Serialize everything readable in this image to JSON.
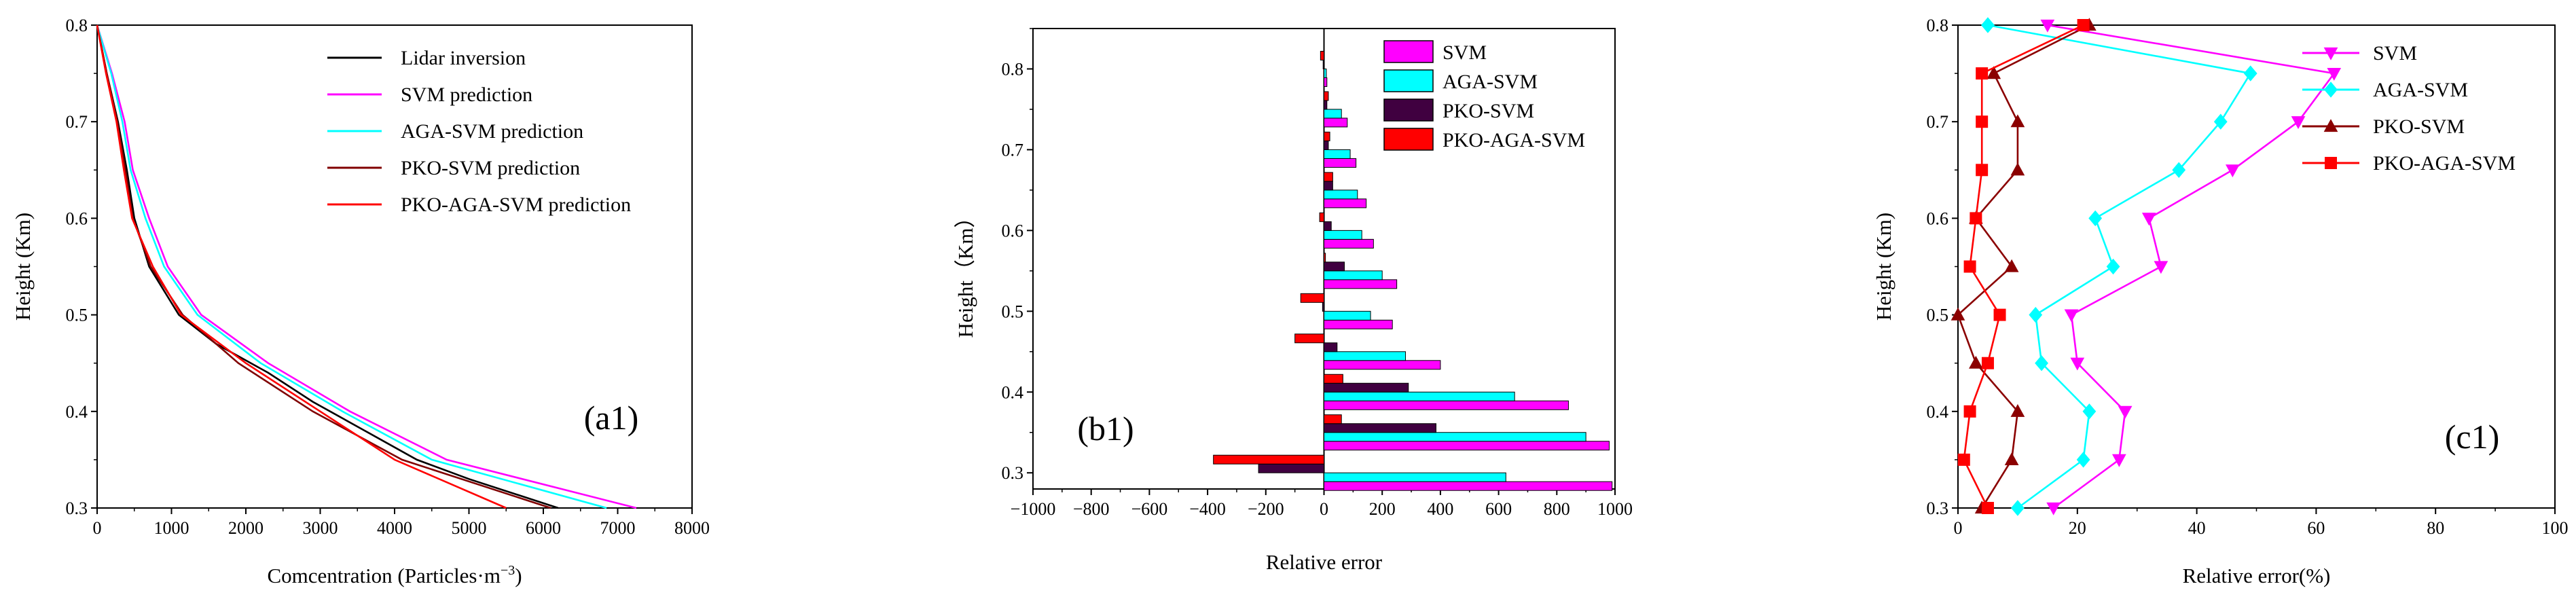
{
  "chart_data": [
    {
      "type": "line",
      "panel_label": "(a1)",
      "xlabel": "Comcentration (Particles·m",
      "xlabel_sup": "−3",
      "xlabel_close": ")",
      "ylabel": "Height (Km)",
      "xlim": [
        0,
        8000
      ],
      "ylim": [
        0.3,
        0.8
      ],
      "xticks": [
        "0",
        "1000",
        "2000",
        "3000",
        "4000",
        "5000",
        "6000",
        "7000",
        "8000"
      ],
      "yticks": [
        "0.3",
        "0.4",
        "0.5",
        "0.6",
        "0.7",
        "0.8"
      ],
      "legend_position": "top-right",
      "series": [
        {
          "name": "Lidar inversion",
          "color": "#000000",
          "points": [
            [
              0,
              0.8
            ],
            [
              130,
              0.75
            ],
            [
              280,
              0.7
            ],
            [
              400,
              0.65
            ],
            [
              500,
              0.6
            ],
            [
              700,
              0.55
            ],
            [
              1100,
              0.5
            ],
            [
              1600,
              0.47
            ],
            [
              2300,
              0.44
            ],
            [
              2900,
              0.41
            ],
            [
              3600,
              0.38
            ],
            [
              4300,
              0.35
            ],
            [
              5000,
              0.33
            ],
            [
              6200,
              0.3
            ]
          ]
        },
        {
          "name": "SVM prediction",
          "color": "#ff00ff",
          "points": [
            [
              0,
              0.8
            ],
            [
              200,
              0.75
            ],
            [
              370,
              0.7
            ],
            [
              480,
              0.65
            ],
            [
              700,
              0.6
            ],
            [
              950,
              0.55
            ],
            [
              1400,
              0.5
            ],
            [
              2300,
              0.45
            ],
            [
              3400,
              0.4
            ],
            [
              4700,
              0.35
            ],
            [
              7250,
              0.3
            ]
          ]
        },
        {
          "name": "AGA-SVM prediction",
          "color": "#00ffff",
          "points": [
            [
              0,
              0.8
            ],
            [
              190,
              0.75
            ],
            [
              340,
              0.7
            ],
            [
              450,
              0.65
            ],
            [
              650,
              0.6
            ],
            [
              900,
              0.55
            ],
            [
              1350,
              0.5
            ],
            [
              2200,
              0.45
            ],
            [
              3300,
              0.4
            ],
            [
              4500,
              0.35
            ],
            [
              6850,
              0.3
            ]
          ]
        },
        {
          "name": "PKO-SVM prediction",
          "color": "#800000",
          "points": [
            [
              0,
              0.8
            ],
            [
              130,
              0.75
            ],
            [
              270,
              0.7
            ],
            [
              380,
              0.65
            ],
            [
              480,
              0.6
            ],
            [
              720,
              0.55
            ],
            [
              1150,
              0.5
            ],
            [
              1900,
              0.45
            ],
            [
              2900,
              0.4
            ],
            [
              4100,
              0.35
            ],
            [
              6100,
              0.3
            ]
          ]
        },
        {
          "name": "PKO-AGA-SVM prediction",
          "color": "#ff0000",
          "points": [
            [
              0,
              0.8
            ],
            [
              120,
              0.75
            ],
            [
              260,
              0.7
            ],
            [
              360,
              0.65
            ],
            [
              470,
              0.6
            ],
            [
              750,
              0.55
            ],
            [
              1130,
              0.5
            ],
            [
              2000,
              0.45
            ],
            [
              3000,
              0.4
            ],
            [
              4000,
              0.35
            ],
            [
              5500,
              0.3
            ]
          ]
        }
      ]
    },
    {
      "type": "bar",
      "orientation": "horizontal",
      "panel_label": "(b1)",
      "xlabel": "Relative error",
      "ylabel": "Height（Km）",
      "xlim": [
        -1000,
        1000
      ],
      "ylim": [
        0.28,
        0.85
      ],
      "xticks": [
        "−1000",
        "−800",
        "−600",
        "−400",
        "−200",
        "0",
        "200",
        "400",
        "600",
        "800",
        "1000"
      ],
      "yticks": [
        "0.3",
        "0.4",
        "0.5",
        "0.6",
        "0.7",
        "0.8"
      ],
      "legend_position": "top-right",
      "categories": [
        0.3,
        0.35,
        0.4,
        0.45,
        0.5,
        0.55,
        0.6,
        0.65,
        0.7,
        0.75,
        0.8
      ],
      "series": [
        {
          "name": "SVM",
          "color": "#ff00ff",
          "values": [
            990,
            980,
            840,
            400,
            235,
            250,
            170,
            145,
            110,
            80,
            10
          ]
        },
        {
          "name": "AGA-SVM",
          "color": "#00ffff",
          "values": [
            625,
            900,
            655,
            280,
            160,
            200,
            130,
            115,
            90,
            60,
            8
          ]
        },
        {
          "name": "PKO-SVM",
          "color": "#400040",
          "values": [
            -225,
            385,
            290,
            45,
            -5,
            70,
            25,
            30,
            15,
            10,
            -3
          ]
        },
        {
          "name": "PKO-AGA-SVM",
          "color": "#ff0000",
          "values": [
            -380,
            60,
            65,
            -100,
            -80,
            5,
            -15,
            30,
            20,
            15,
            -12
          ]
        }
      ]
    },
    {
      "type": "line",
      "panel_label": "(c1)",
      "xlabel": "Relative error(%)",
      "ylabel": "Height (Km)",
      "xlim": [
        0,
        100
      ],
      "ylim": [
        0.3,
        0.8
      ],
      "xticks": [
        "0",
        "20",
        "40",
        "60",
        "80",
        "100"
      ],
      "yticks": [
        "0.3",
        "0.4",
        "0.5",
        "0.6",
        "0.7",
        "0.8"
      ],
      "legend_position": "top-right",
      "series": [
        {
          "name": "SVM",
          "color": "#ff00ff",
          "marker": "triangle-down",
          "points": [
            [
              16,
              0.3
            ],
            [
              27,
              0.35
            ],
            [
              28,
              0.4
            ],
            [
              20,
              0.45
            ],
            [
              19,
              0.5
            ],
            [
              34,
              0.55
            ],
            [
              32,
              0.6
            ],
            [
              46,
              0.65
            ],
            [
              57,
              0.7
            ],
            [
              63,
              0.75
            ],
            [
              15,
              0.8
            ]
          ]
        },
        {
          "name": "AGA-SVM",
          "color": "#00ffff",
          "marker": "diamond",
          "points": [
            [
              10,
              0.3
            ],
            [
              21,
              0.35
            ],
            [
              22,
              0.4
            ],
            [
              14,
              0.45
            ],
            [
              13,
              0.5
            ],
            [
              26,
              0.55
            ],
            [
              23,
              0.6
            ],
            [
              37,
              0.65
            ],
            [
              44,
              0.7
            ],
            [
              49,
              0.75
            ],
            [
              5,
              0.8
            ]
          ]
        },
        {
          "name": "PKO-SVM",
          "color": "#8b0000",
          "marker": "triangle-up",
          "points": [
            [
              4,
              0.3
            ],
            [
              9,
              0.35
            ],
            [
              10,
              0.4
            ],
            [
              3,
              0.45
            ],
            [
              0,
              0.5
            ],
            [
              9,
              0.55
            ],
            [
              3,
              0.6
            ],
            [
              10,
              0.65
            ],
            [
              10,
              0.7
            ],
            [
              6,
              0.75
            ],
            [
              22,
              0.8
            ]
          ]
        },
        {
          "name": "PKO-AGA-SVM",
          "color": "#ff0000",
          "marker": "square",
          "points": [
            [
              5,
              0.3
            ],
            [
              1,
              0.35
            ],
            [
              2,
              0.4
            ],
            [
              5,
              0.45
            ],
            [
              7,
              0.5
            ],
            [
              2,
              0.55
            ],
            [
              3,
              0.6
            ],
            [
              4,
              0.65
            ],
            [
              4,
              0.7
            ],
            [
              4,
              0.75
            ],
            [
              21,
              0.8
            ]
          ]
        }
      ]
    }
  ]
}
